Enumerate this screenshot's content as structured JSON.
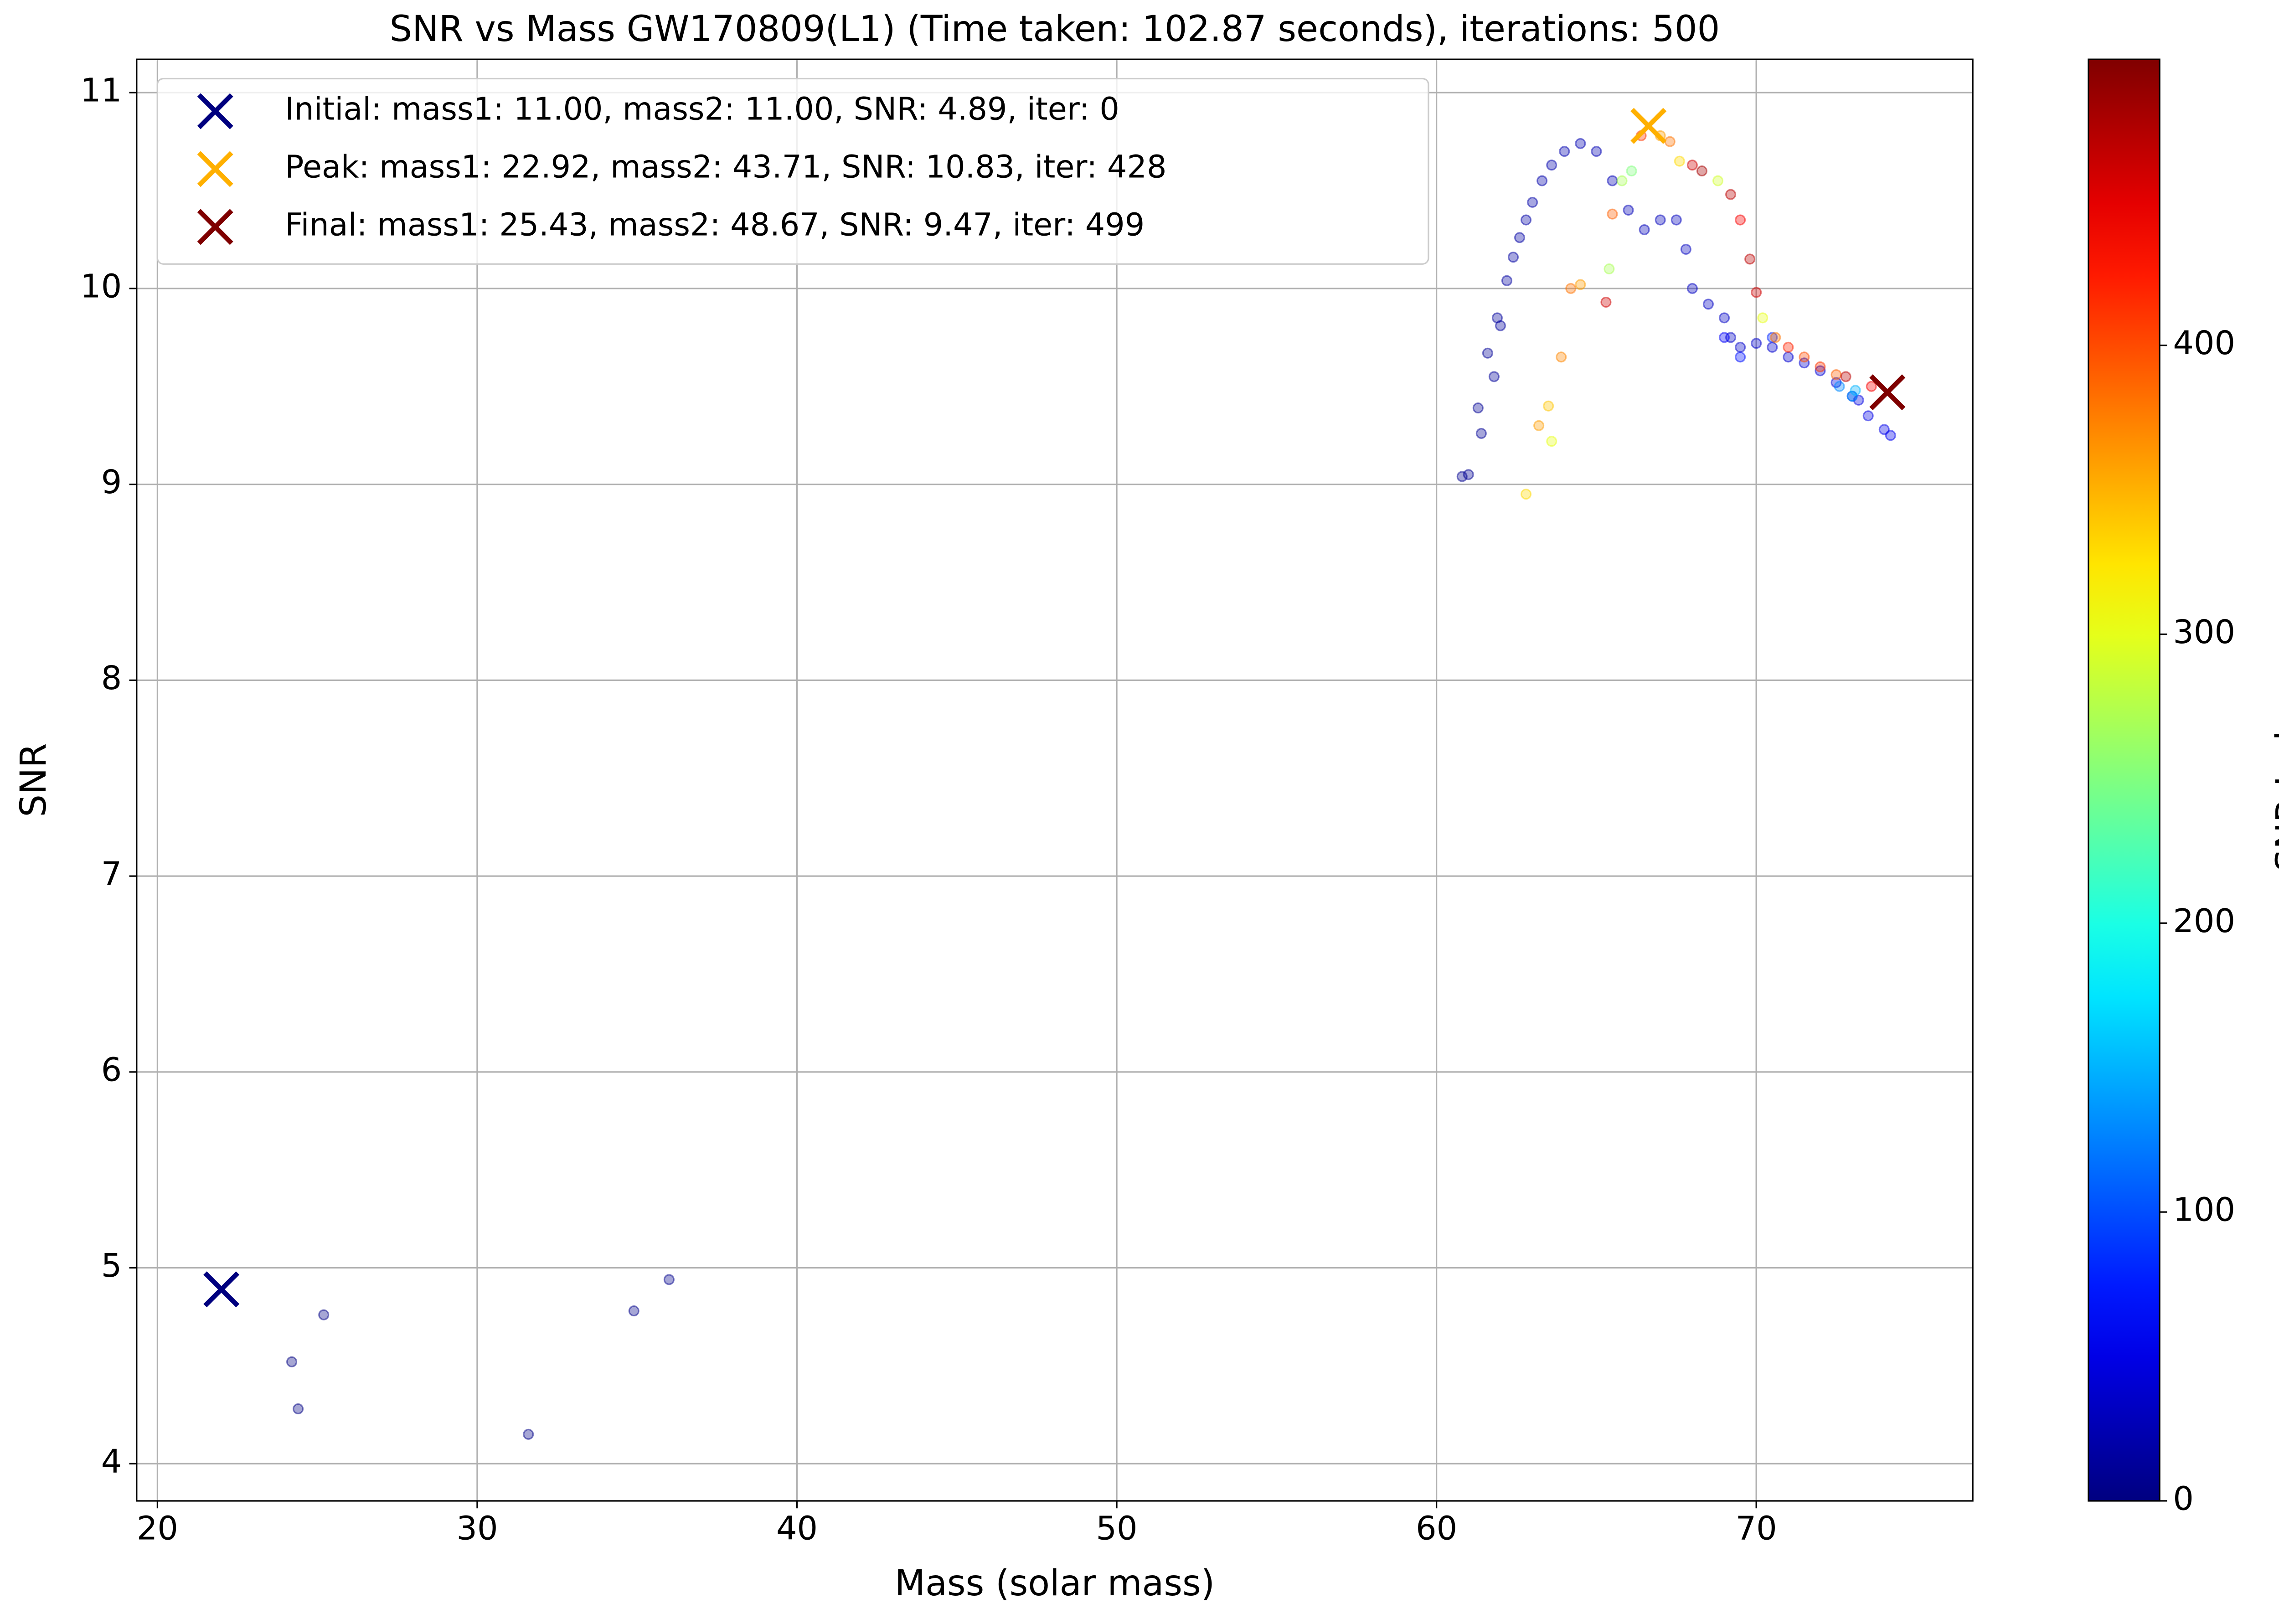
{
  "chart_data": {
    "type": "scatter",
    "title": "SNR vs Mass GW170809(L1) (Time taken: 102.87 seconds), iterations: 500",
    "xlabel": "Mass (solar mass)",
    "ylabel": "SNR",
    "xlim": [
      19.35,
      76.77
    ],
    "ylim": [
      3.81,
      11.17
    ],
    "xticks": [
      20,
      30,
      40,
      50,
      60,
      70
    ],
    "yticks": [
      4,
      5,
      6,
      7,
      8,
      9,
      10,
      11
    ],
    "grid": true,
    "legend": "upper left",
    "colormap": "jet",
    "colorbar": {
      "label": "SNR Index",
      "lim": [
        0,
        499
      ],
      "ticks": [
        0,
        100,
        200,
        300,
        400
      ]
    },
    "series": [
      {
        "x": [
          24.2,
          24.4,
          25.2,
          31.6,
          34.9,
          36.0,
          60.8,
          61.0,
          61.3,
          61.4,
          61.6,
          61.8,
          61.9,
          62.0,
          62.2,
          62.4,
          62.6,
          62.8,
          63.0,
          63.3,
          63.6,
          64.0,
          64.5,
          65.0,
          65.5,
          66.0,
          66.5,
          67.0,
          67.5,
          67.8,
          68.0,
          68.5,
          69.0,
          69.2,
          69.5,
          70.0,
          70.5,
          71.0,
          71.5,
          72.0,
          72.5,
          73.0,
          73.2,
          73.5,
          74.0,
          74.2,
          69.0,
          69.5,
          70.5,
          72.6,
          73.0,
          73.1,
          62.8,
          63.2,
          63.5,
          63.6,
          63.9,
          64.2,
          64.5,
          65.4,
          65.5,
          65.3,
          65.8,
          66.1,
          66.4,
          67.0,
          67.3,
          67.6,
          68.0,
          68.3,
          68.8,
          69.2,
          69.5,
          69.8,
          70.0,
          70.2,
          70.6,
          71.0,
          71.5,
          72.0,
          72.5,
          72.8,
          73.6
        ],
        "values": [
          4.52,
          4.28,
          4.76,
          4.15,
          4.78,
          4.94,
          9.04,
          9.05,
          9.39,
          9.26,
          9.67,
          9.55,
          9.85,
          9.81,
          10.04,
          10.16,
          10.26,
          10.35,
          10.44,
          10.55,
          10.63,
          10.7,
          10.74,
          10.7,
          10.55,
          10.4,
          10.3,
          10.35,
          10.35,
          10.2,
          10.0,
          9.92,
          9.85,
          9.75,
          9.7,
          9.72,
          9.7,
          9.65,
          9.62,
          9.58,
          9.52,
          9.45,
          9.43,
          9.35,
          9.28,
          9.25,
          9.75,
          9.65,
          9.75,
          9.5,
          9.45,
          9.48,
          8.95,
          9.3,
          9.4,
          9.22,
          9.65,
          10.0,
          10.02,
          10.1,
          10.38,
          9.93,
          10.55,
          10.6,
          10.78,
          10.78,
          10.75,
          10.65,
          10.63,
          10.6,
          10.55,
          10.48,
          10.35,
          10.15,
          9.98,
          9.85,
          9.75,
          9.7,
          9.65,
          9.6,
          9.56,
          9.55,
          9.5
        ],
        "iter": [
          1,
          2,
          3,
          4,
          5,
          6,
          8,
          9,
          10,
          11,
          12,
          13,
          14,
          15,
          16,
          17,
          18,
          19,
          20,
          21,
          22,
          23,
          24,
          25,
          26,
          27,
          28,
          29,
          30,
          31,
          32,
          33,
          34,
          35,
          36,
          37,
          38,
          39,
          40,
          42,
          44,
          46,
          48,
          50,
          52,
          54,
          60,
          70,
          80,
          130,
          140,
          150,
          330,
          360,
          340,
          300,
          370,
          380,
          360,
          270,
          390,
          460,
          270,
          250,
          410,
          360,
          380,
          330,
          460,
          480,
          290,
          470,
          440,
          470,
          460,
          300,
          380,
          420,
          400,
          410,
          390,
          470,
          440
        ]
      },
      {
        "name": "Initial: mass1: 11.00, mass2: 11.00, SNR: 4.89, iter: 0",
        "color": "#00007f",
        "x": [
          22.0
        ],
        "values": [
          4.89
        ]
      },
      {
        "name": "Peak: mass1: 22.92, mass2: 43.71, SNR: 10.83, iter: 428",
        "color": "#ffb000",
        "x": [
          66.63
        ],
        "values": [
          10.83
        ]
      },
      {
        "name": "Final: mass1: 25.43, mass2: 48.67, SNR: 9.47, iter: 499",
        "color": "#7f0000",
        "x": [
          74.1
        ],
        "values": [
          9.47
        ]
      }
    ]
  }
}
